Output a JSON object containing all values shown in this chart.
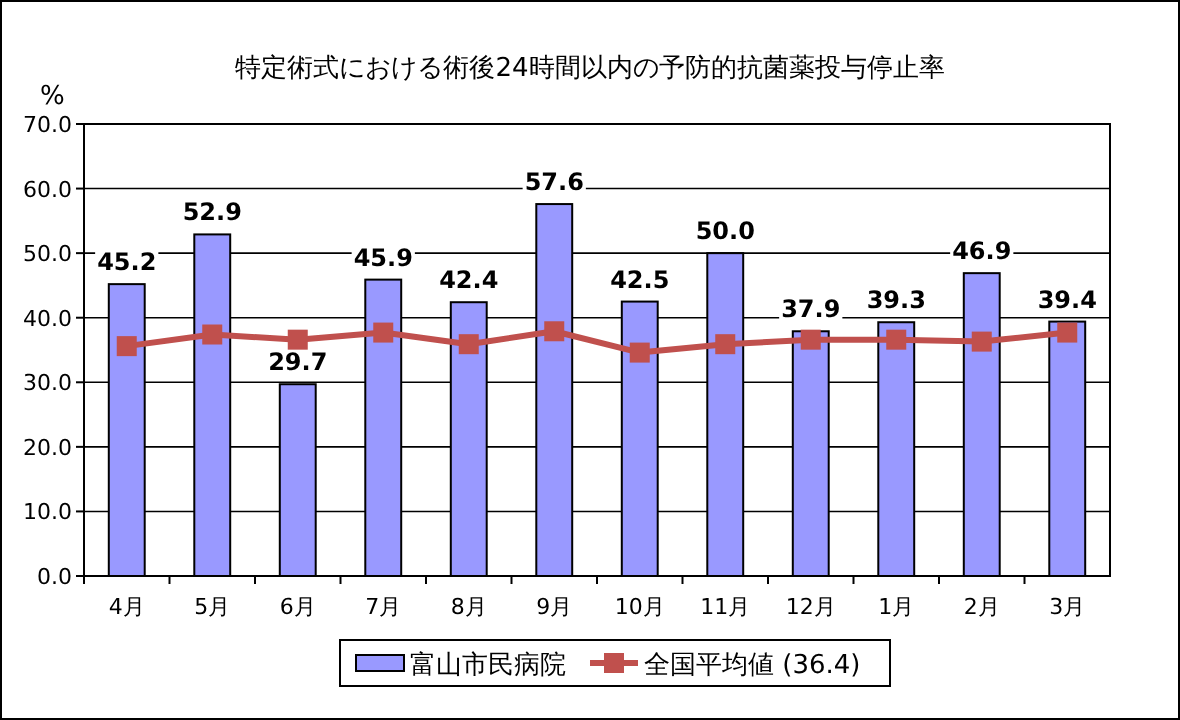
{
  "chart_data": {
    "type": "bar",
    "title": "特定術式における術後24時間以内の予防的抗菌薬投与停止率",
    "ylabel": "%",
    "categories": [
      "4月",
      "5月",
      "6月",
      "7月",
      "8月",
      "9月",
      "10月",
      "11月",
      "12月",
      "1月",
      "2月",
      "3月"
    ],
    "series": [
      {
        "name": "富山市民病院",
        "color": "#9999ff",
        "values": [
          45.2,
          52.9,
          29.7,
          45.9,
          42.4,
          57.6,
          42.5,
          50.0,
          37.9,
          39.3,
          46.9,
          39.4
        ],
        "value_labels": [
          "45.2",
          "52.9",
          "29.7",
          "45.9",
          "42.4",
          "57.6",
          "42.5",
          "50.0",
          "37.9",
          "39.3",
          "46.9",
          "39.4"
        ]
      },
      {
        "name": "全国平均値 (36.4)",
        "type": "line",
        "color": "#c0504d",
        "marker": "square",
        "values": [
          35.6,
          37.4,
          36.6,
          37.7,
          35.9,
          37.9,
          34.6,
          35.9,
          36.6,
          36.6,
          36.3,
          37.7
        ]
      }
    ],
    "ylim": [
      0,
      70
    ],
    "yticks": [
      {
        "value": 0,
        "label": "0.0"
      },
      {
        "value": 10,
        "label": "10.0"
      },
      {
        "value": 20,
        "label": "20.0"
      },
      {
        "value": 30,
        "label": "30.0"
      },
      {
        "value": 40,
        "label": "40.0"
      },
      {
        "value": 50,
        "label": "50.0"
      },
      {
        "value": 60,
        "label": "60.0"
      },
      {
        "value": 70,
        "label": "70.0"
      }
    ],
    "grid": "y",
    "legend": "bottom"
  }
}
